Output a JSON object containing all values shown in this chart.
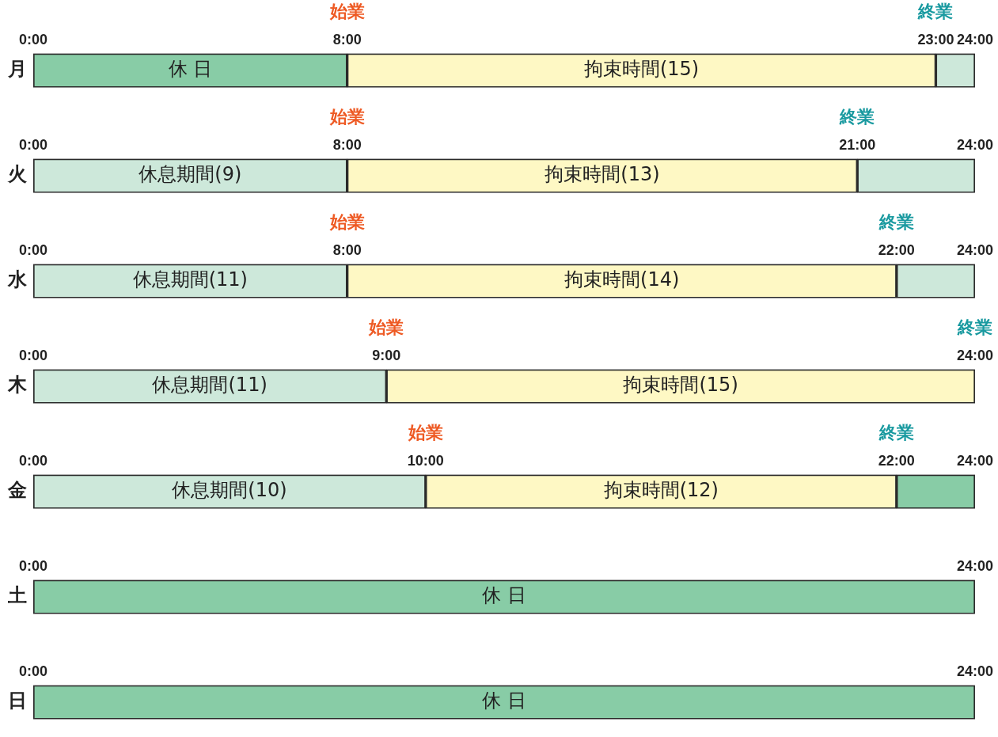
{
  "chart_data": [
    {
      "type": "bar",
      "orientation": "horizontal",
      "stacked": true,
      "legend": false,
      "grid": false,
      "categories": [
        "月"
      ],
      "xlim": [
        0,
        24
      ],
      "xticks": [
        {
          "value": 0,
          "label": "0:00"
        },
        {
          "value": 8,
          "label": "8:00"
        },
        {
          "value": 23,
          "label": "23:00"
        },
        {
          "value": 24,
          "label": "24:00"
        }
      ],
      "annotations": [
        {
          "text": "始業",
          "x": 8,
          "y": "月"
        },
        {
          "text": "終業",
          "x": 23,
          "y": "月"
        }
      ],
      "series": [
        {
          "color": "#88cca6",
          "values": [
            8
          ],
          "value_labels": [
            "休 日"
          ]
        },
        {
          "color": "#fef8c4",
          "values": [
            15
          ],
          "value_labels": [
            "拘束時間(15)"
          ]
        },
        {
          "color": "#cde8da",
          "values": [
            1
          ],
          "value_labels": [
            null
          ]
        }
      ]
    },
    {
      "type": "bar",
      "orientation": "horizontal",
      "stacked": true,
      "legend": false,
      "grid": false,
      "categories": [
        "火"
      ],
      "xlim": [
        0,
        24
      ],
      "xticks": [
        {
          "value": 0,
          "label": "0:00"
        },
        {
          "value": 8,
          "label": "8:00"
        },
        {
          "value": 21,
          "label": "21:00"
        },
        {
          "value": 24,
          "label": "24:00"
        }
      ],
      "annotations": [
        {
          "text": "始業",
          "x": 8,
          "y": "火"
        },
        {
          "text": "終業",
          "x": 21,
          "y": "火"
        }
      ],
      "series": [
        {
          "color": "#cde8da",
          "values": [
            8
          ],
          "value_labels": [
            "休息期間(9)"
          ]
        },
        {
          "color": "#fef8c4",
          "values": [
            13
          ],
          "value_labels": [
            "拘束時間(13)"
          ]
        },
        {
          "color": "#cde8da",
          "values": [
            3
          ],
          "value_labels": [
            null
          ]
        }
      ]
    },
    {
      "type": "bar",
      "orientation": "horizontal",
      "stacked": true,
      "legend": false,
      "grid": false,
      "categories": [
        "水"
      ],
      "xlim": [
        0,
        24
      ],
      "xticks": [
        {
          "value": 0,
          "label": "0:00"
        },
        {
          "value": 8,
          "label": "8:00"
        },
        {
          "value": 22,
          "label": "22:00"
        },
        {
          "value": 24,
          "label": "24:00"
        }
      ],
      "annotations": [
        {
          "text": "始業",
          "x": 8,
          "y": "水"
        },
        {
          "text": "終業",
          "x": 22,
          "y": "水"
        }
      ],
      "series": [
        {
          "color": "#cde8da",
          "values": [
            8
          ],
          "value_labels": [
            "休息期間(11)"
          ]
        },
        {
          "color": "#fef8c4",
          "values": [
            14
          ],
          "value_labels": [
            "拘束時間(14)"
          ]
        },
        {
          "color": "#cde8da",
          "values": [
            2
          ],
          "value_labels": [
            null
          ]
        }
      ]
    },
    {
      "type": "bar",
      "orientation": "horizontal",
      "stacked": true,
      "legend": false,
      "grid": false,
      "categories": [
        "木"
      ],
      "xlim": [
        0,
        24
      ],
      "xticks": [
        {
          "value": 0,
          "label": "0:00"
        },
        {
          "value": 9,
          "label": "9:00"
        },
        {
          "value": 24,
          "label": "24:00"
        }
      ],
      "annotations": [
        {
          "text": "始業",
          "x": 9,
          "y": "木"
        },
        {
          "text": "終業",
          "x": 24,
          "y": "木"
        }
      ],
      "series": [
        {
          "color": "#cde8da",
          "values": [
            9
          ],
          "value_labels": [
            "休息期間(11)"
          ]
        },
        {
          "color": "#fef8c4",
          "values": [
            15
          ],
          "value_labels": [
            "拘束時間(15)"
          ]
        }
      ]
    },
    {
      "type": "bar",
      "orientation": "horizontal",
      "stacked": true,
      "legend": false,
      "grid": false,
      "categories": [
        "金"
      ],
      "xlim": [
        0,
        24
      ],
      "xticks": [
        {
          "value": 0,
          "label": "0:00"
        },
        {
          "value": 10,
          "label": "10:00"
        },
        {
          "value": 22,
          "label": "22:00"
        },
        {
          "value": 24,
          "label": "24:00"
        }
      ],
      "annotations": [
        {
          "text": "始業",
          "x": 10,
          "y": "金"
        },
        {
          "text": "終業",
          "x": 22,
          "y": "金"
        }
      ],
      "series": [
        {
          "color": "#cde8da",
          "values": [
            10
          ],
          "value_labels": [
            "休息期間(10)"
          ]
        },
        {
          "color": "#fef8c4",
          "values": [
            12
          ],
          "value_labels": [
            "拘束時間(12)"
          ]
        },
        {
          "color": "#88cca6",
          "values": [
            2
          ],
          "value_labels": [
            null
          ]
        }
      ]
    },
    {
      "type": "bar",
      "orientation": "horizontal",
      "stacked": true,
      "legend": false,
      "grid": false,
      "categories": [
        "土"
      ],
      "xlim": [
        0,
        24
      ],
      "xticks": [
        {
          "value": 0,
          "label": "0:00"
        },
        {
          "value": 24,
          "label": "24:00"
        }
      ],
      "series": [
        {
          "color": "#88cca6",
          "values": [
            24
          ],
          "value_labels": [
            "休 日"
          ]
        }
      ]
    },
    {
      "type": "bar",
      "orientation": "horizontal",
      "stacked": true,
      "legend": false,
      "grid": false,
      "categories": [
        "日"
      ],
      "xlim": [
        0,
        24
      ],
      "xticks": [
        {
          "value": 0,
          "label": "0:00"
        },
        {
          "value": 24,
          "label": "24:00"
        }
      ],
      "series": [
        {
          "color": "#88cca6",
          "values": [
            24
          ],
          "value_labels": [
            "休 日"
          ]
        }
      ]
    }
  ]
}
